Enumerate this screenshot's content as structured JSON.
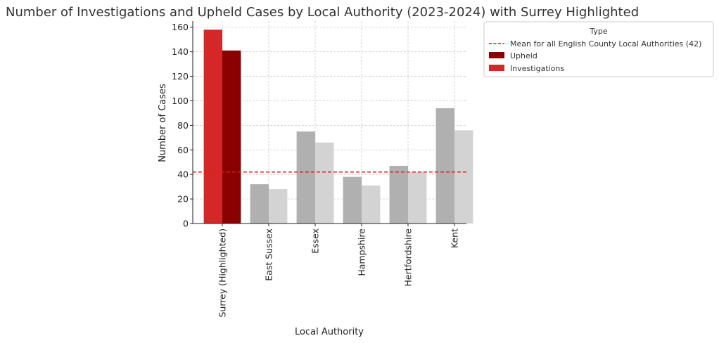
{
  "chart_data": {
    "type": "bar",
    "title": "Number of Investigations and Upheld Cases by Local Authority (2023-2024) with Surrey Highlighted",
    "xlabel": "Local Authority",
    "ylabel": "Number of Cases",
    "ylim": [
      0,
      165
    ],
    "yticks": [
      0,
      20,
      40,
      60,
      80,
      100,
      120,
      140,
      160
    ],
    "categories": [
      "Surrey (Highlighted)",
      "East Sussex",
      "Essex",
      "Hampshire",
      "Hertfordshire",
      "Kent"
    ],
    "series": [
      {
        "name": "Investigations",
        "values": [
          158,
          32,
          75,
          38,
          47,
          94
        ],
        "highlight_color": "#d62728",
        "color": "#b0b0b0"
      },
      {
        "name": "Upheld",
        "values": [
          141,
          28,
          66,
          31,
          42,
          76
        ],
        "highlight_color": "#8b0000",
        "color": "#d3d3d3"
      }
    ],
    "highlight_category": "Surrey (Highlighted)",
    "mean_line": {
      "label": "Mean for all English County Local Authorities (42)",
      "value": 42,
      "color": "#e31a1c",
      "style": "dashed"
    },
    "legend": {
      "title": "Type",
      "placement": "outside-upper-right",
      "entries": [
        {
          "label": "Mean for all English County Local Authorities (42)",
          "kind": "line",
          "color": "#e31a1c"
        },
        {
          "label": "Upheld",
          "kind": "patch",
          "color": "#8b0000"
        },
        {
          "label": "Investigations",
          "kind": "patch",
          "color": "#d62728"
        }
      ]
    },
    "grid": true
  }
}
